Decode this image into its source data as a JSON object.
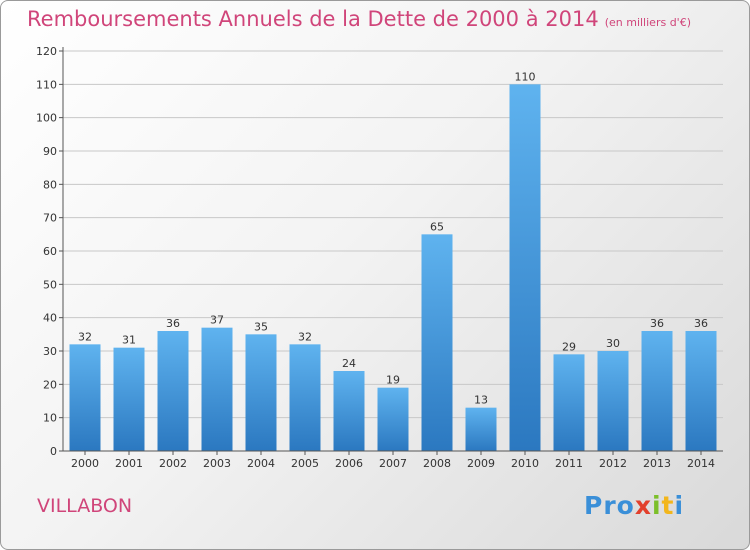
{
  "title": "Remboursements Annuels de la Dette de 2000 à 2014",
  "unit": "(en milliers d'€)",
  "town": "VILLABON",
  "logo": [
    "Pro",
    "x",
    "i",
    "t",
    "i"
  ],
  "colors": {
    "title": "#d0457a",
    "bar": "#3d95dc",
    "grid": "#c8c8c8"
  },
  "chart_data": {
    "type": "bar",
    "title": "Remboursements Annuels de la Dette de 2000 à 2014",
    "categories": [
      "2000",
      "2001",
      "2002",
      "2003",
      "2004",
      "2005",
      "2006",
      "2007",
      "2008",
      "2009",
      "2010",
      "2011",
      "2012",
      "2013",
      "2014"
    ],
    "values": [
      32,
      31,
      36,
      37,
      35,
      32,
      24,
      19,
      65,
      13,
      110,
      29,
      30,
      36,
      36
    ],
    "ylim": [
      0,
      120
    ],
    "yticks": [
      0,
      10,
      20,
      30,
      40,
      50,
      60,
      70,
      80,
      90,
      100,
      110,
      120
    ],
    "grid": true,
    "legend": "none"
  }
}
